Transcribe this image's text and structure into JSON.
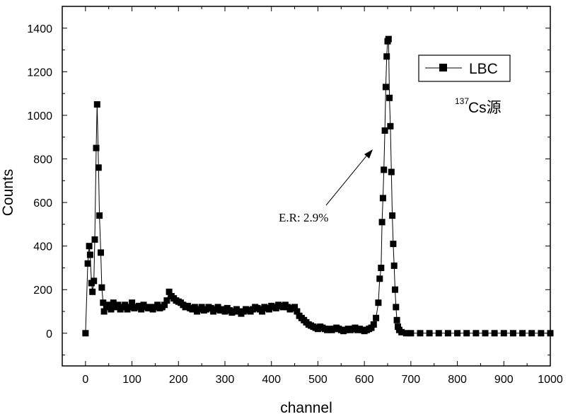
{
  "chart_data": {
    "type": "line",
    "xlabel": "channel",
    "ylabel": "Counts",
    "xlim": [
      -50,
      1000
    ],
    "ylim": [
      -150,
      1500
    ],
    "xticks": [
      0,
      100,
      200,
      300,
      400,
      500,
      600,
      700,
      800,
      900,
      1000
    ],
    "yticks": [
      0,
      200,
      400,
      600,
      800,
      1000,
      1200,
      1400
    ],
    "grid": false,
    "legend_position": "top-right",
    "series": [
      {
        "name": "LBC",
        "color": "#000000",
        "marker": "filled-square",
        "x": [
          0,
          5,
          8,
          10,
          13,
          15,
          18,
          20,
          23,
          25,
          28,
          30,
          33,
          35,
          38,
          40,
          45,
          50,
          55,
          60,
          65,
          70,
          75,
          80,
          85,
          90,
          95,
          100,
          105,
          110,
          115,
          120,
          125,
          130,
          135,
          140,
          145,
          150,
          155,
          160,
          165,
          170,
          175,
          180,
          185,
          190,
          195,
          200,
          205,
          210,
          215,
          220,
          225,
          230,
          235,
          240,
          245,
          250,
          255,
          260,
          265,
          270,
          275,
          280,
          285,
          290,
          295,
          300,
          305,
          310,
          315,
          320,
          325,
          330,
          335,
          340,
          345,
          350,
          355,
          360,
          365,
          370,
          375,
          380,
          385,
          390,
          395,
          400,
          405,
          410,
          415,
          420,
          425,
          430,
          435,
          440,
          445,
          450,
          455,
          460,
          465,
          470,
          475,
          480,
          485,
          490,
          495,
          500,
          505,
          510,
          515,
          520,
          525,
          530,
          535,
          540,
          545,
          550,
          555,
          560,
          565,
          570,
          575,
          580,
          585,
          590,
          595,
          600,
          605,
          610,
          615,
          620,
          625,
          630,
          633,
          636,
          638,
          640,
          642,
          644,
          646,
          648,
          650,
          652,
          654,
          656,
          658,
          660,
          662,
          664,
          666,
          668,
          670,
          672,
          675,
          680,
          690,
          700,
          720,
          740,
          760,
          780,
          800,
          820,
          840,
          860,
          880,
          900,
          920,
          940,
          960,
          980,
          1000
        ],
        "y": [
          0,
          320,
          400,
          360,
          230,
          190,
          240,
          430,
          850,
          1050,
          760,
          540,
          370,
          210,
          140,
          100,
          120,
          130,
          110,
          140,
          120,
          130,
          110,
          120,
          130,
          110,
          120,
          140,
          115,
          120,
          125,
          110,
          130,
          120,
          115,
          120,
          110,
          120,
          130,
          115,
          120,
          130,
          150,
          190,
          170,
          160,
          150,
          145,
          140,
          130,
          120,
          125,
          115,
          110,
          120,
          100,
          110,
          120,
          105,
          110,
          120,
          115,
          100,
          110,
          120,
          105,
          110,
          100,
          115,
          105,
          95,
          100,
          110,
          100,
          90,
          100,
          110,
          105,
          100,
          110,
          120,
          115,
          110,
          100,
          120,
          115,
          110,
          125,
          120,
          115,
          130,
          125,
          120,
          130,
          120,
          110,
          115,
          120,
          100,
          80,
          70,
          60,
          50,
          40,
          35,
          30,
          25,
          20,
          30,
          25,
          20,
          15,
          20,
          15,
          20,
          25,
          20,
          15,
          10,
          15,
          20,
          15,
          20,
          25,
          15,
          20,
          15,
          10,
          15,
          20,
          25,
          40,
          70,
          140,
          250,
          300,
          510,
          620,
          750,
          930,
          1130,
          1270,
          1340,
          1350,
          1080,
          950,
          740,
          540,
          410,
          310,
          200,
          120,
          60,
          30,
          15,
          5,
          0,
          0,
          0,
          0,
          0,
          0,
          0,
          0,
          0,
          0,
          0,
          0,
          0,
          0,
          0,
          0,
          0
        ]
      }
    ],
    "annotations": [
      {
        "text": "E.R: 2.9%",
        "arrow_to": [
          625,
          850
        ]
      }
    ],
    "source_label": {
      "superscript": "137",
      "text": "Cs源"
    }
  }
}
